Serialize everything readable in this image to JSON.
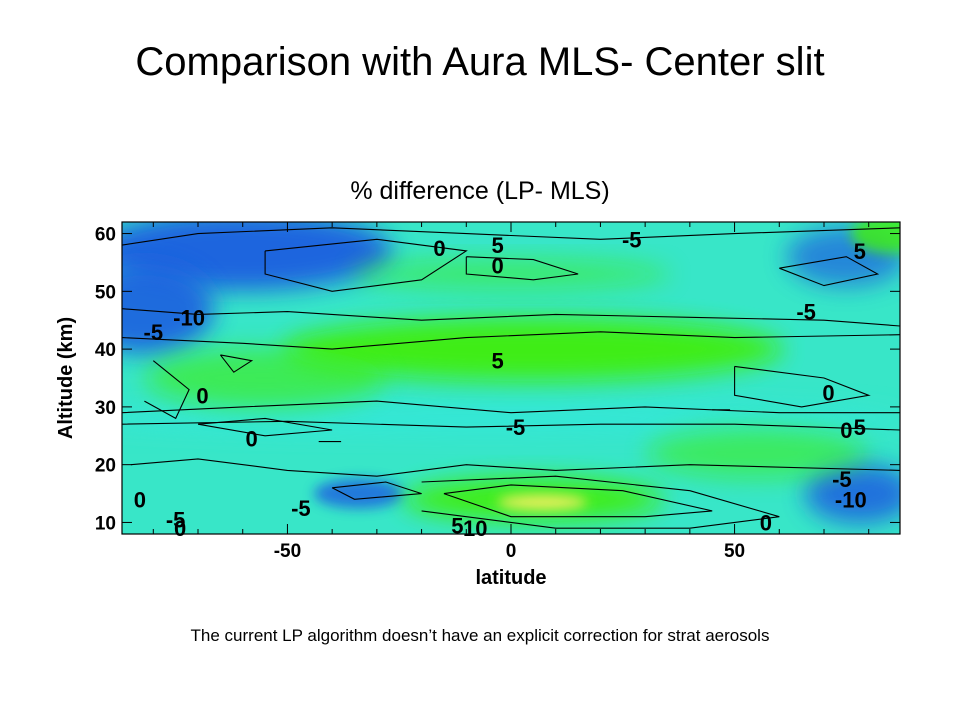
{
  "slide": {
    "title": "Comparison with Aura MLS- Center slit",
    "footnote": "The current LP algorithm doesn’t have an explicit correction for strat aerosols"
  },
  "chart_data": {
    "type": "heatmap",
    "title": "% difference (LP- MLS)",
    "xlabel": "latitude",
    "ylabel": "Altitude (km)",
    "xlim": [
      -87,
      87
    ],
    "ylim": [
      8,
      62
    ],
    "x_ticks": [
      -50,
      0,
      50
    ],
    "y_ticks": [
      10,
      20,
      30,
      40,
      50,
      60
    ],
    "colorscale": {
      "min_color": "#1f5fe0",
      "mid_color": "#30e8e0",
      "max_color": "#40ee10",
      "hot_color": "#f0f060"
    },
    "contour_labels": [
      {
        "text": "0",
        "lat": -16,
        "alt": 57.5
      },
      {
        "text": "5",
        "lat": -3,
        "alt": 58
      },
      {
        "text": "-5",
        "lat": 27,
        "alt": 59
      },
      {
        "text": "0",
        "lat": -3,
        "alt": 54.5
      },
      {
        "text": "5",
        "lat": 78,
        "alt": 57
      },
      {
        "text": "-5",
        "lat": -80,
        "alt": 43
      },
      {
        "text": "-10",
        "lat": -72,
        "alt": 45.5
      },
      {
        "text": "-5",
        "lat": 66,
        "alt": 46.5
      },
      {
        "text": "5",
        "lat": -3,
        "alt": 38
      },
      {
        "text": "0",
        "lat": -69,
        "alt": 32
      },
      {
        "text": "0",
        "lat": 71,
        "alt": 32.5
      },
      {
        "text": "-5",
        "lat": 1,
        "alt": 26.5
      },
      {
        "text": "0",
        "lat": -58,
        "alt": 24.5
      },
      {
        "text": "0",
        "lat": 75,
        "alt": 26
      },
      {
        "text": "5",
        "lat": 78,
        "alt": 26.5
      },
      {
        "text": "0",
        "lat": -83,
        "alt": 14
      },
      {
        "text": "-5",
        "lat": -47,
        "alt": 12.5
      },
      {
        "text": "-5",
        "lat": 74,
        "alt": 17.5
      },
      {
        "text": "-10",
        "lat": 76,
        "alt": 14
      },
      {
        "text": "-5",
        "lat": -75,
        "alt": 10.5
      },
      {
        "text": "0",
        "lat": -74,
        "alt": 9
      },
      {
        "text": "5",
        "lat": -12,
        "alt": 9.5
      },
      {
        "text": "10",
        "lat": -8,
        "alt": 9
      },
      {
        "text": "0",
        "lat": 57,
        "alt": 10
      }
    ]
  }
}
